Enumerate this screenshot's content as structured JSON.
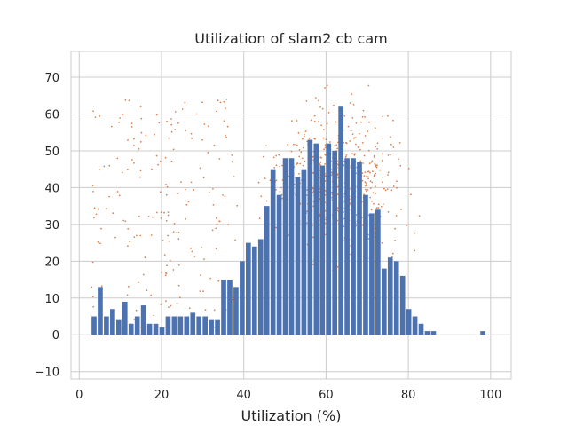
{
  "chart_data": {
    "type": "bar",
    "title": "Utilization of slam2 cb cam",
    "xlabel": "Utilization (%)",
    "ylabel": "",
    "xlim": [
      -2,
      105
    ],
    "ylim": [
      -12,
      77
    ],
    "xticks": [
      0,
      20,
      40,
      60,
      80,
      100
    ],
    "yticks": [
      -10,
      0,
      10,
      20,
      30,
      40,
      50,
      60,
      70
    ],
    "grid": true,
    "legend": "none",
    "bar_color": "#4c72b0",
    "scatter_color": "#dd8452",
    "bins": [
      {
        "x": 3,
        "value": 5
      },
      {
        "x": 4.5,
        "value": 13
      },
      {
        "x": 6,
        "value": 5
      },
      {
        "x": 7.5,
        "value": 7
      },
      {
        "x": 9,
        "value": 4
      },
      {
        "x": 10.5,
        "value": 9
      },
      {
        "x": 12,
        "value": 3
      },
      {
        "x": 13.5,
        "value": 5
      },
      {
        "x": 15,
        "value": 8
      },
      {
        "x": 16.5,
        "value": 3
      },
      {
        "x": 18,
        "value": 3
      },
      {
        "x": 19.5,
        "value": 2
      },
      {
        "x": 21,
        "value": 5
      },
      {
        "x": 22.5,
        "value": 5
      },
      {
        "x": 24,
        "value": 5
      },
      {
        "x": 25.5,
        "value": 5
      },
      {
        "x": 27,
        "value": 6
      },
      {
        "x": 28.5,
        "value": 5
      },
      {
        "x": 30,
        "value": 5
      },
      {
        "x": 31.5,
        "value": 4
      },
      {
        "x": 33,
        "value": 4
      },
      {
        "x": 34.5,
        "value": 15
      },
      {
        "x": 36,
        "value": 15
      },
      {
        "x": 37.5,
        "value": 13
      },
      {
        "x": 39,
        "value": 20
      },
      {
        "x": 40.5,
        "value": 25
      },
      {
        "x": 42,
        "value": 24
      },
      {
        "x": 43.5,
        "value": 26
      },
      {
        "x": 45,
        "value": 35
      },
      {
        "x": 46.5,
        "value": 45
      },
      {
        "x": 48,
        "value": 38
      },
      {
        "x": 49.5,
        "value": 48
      },
      {
        "x": 51,
        "value": 48
      },
      {
        "x": 52.5,
        "value": 43
      },
      {
        "x": 54,
        "value": 45
      },
      {
        "x": 55.5,
        "value": 53
      },
      {
        "x": 57,
        "value": 52
      },
      {
        "x": 58.5,
        "value": 46
      },
      {
        "x": 60,
        "value": 52
      },
      {
        "x": 61.5,
        "value": 50
      },
      {
        "x": 63,
        "value": 62
      },
      {
        "x": 64.5,
        "value": 48
      },
      {
        "x": 66,
        "value": 48
      },
      {
        "x": 67.5,
        "value": 47
      },
      {
        "x": 69,
        "value": 38
      },
      {
        "x": 70.5,
        "value": 33
      },
      {
        "x": 72,
        "value": 34
      },
      {
        "x": 73.5,
        "value": 18
      },
      {
        "x": 75,
        "value": 21
      },
      {
        "x": 76.5,
        "value": 20
      },
      {
        "x": 78,
        "value": 16
      },
      {
        "x": 79.5,
        "value": 7
      },
      {
        "x": 81,
        "value": 5
      },
      {
        "x": 82.5,
        "value": 3
      },
      {
        "x": 84,
        "value": 1
      },
      {
        "x": 85.5,
        "value": 1
      },
      {
        "x": 87,
        "value": 0
      },
      {
        "x": 88.5,
        "value": 0
      },
      {
        "x": 90,
        "value": 0
      },
      {
        "x": 91.5,
        "value": 0
      },
      {
        "x": 93,
        "value": 0
      },
      {
        "x": 94.5,
        "value": 0
      },
      {
        "x": 96,
        "value": 0
      },
      {
        "x": 97.5,
        "value": 1
      },
      {
        "x": 99,
        "value": 0
      }
    ],
    "bin_width": 1.35,
    "scatter": {
      "count": 900,
      "seed": 7
    }
  }
}
